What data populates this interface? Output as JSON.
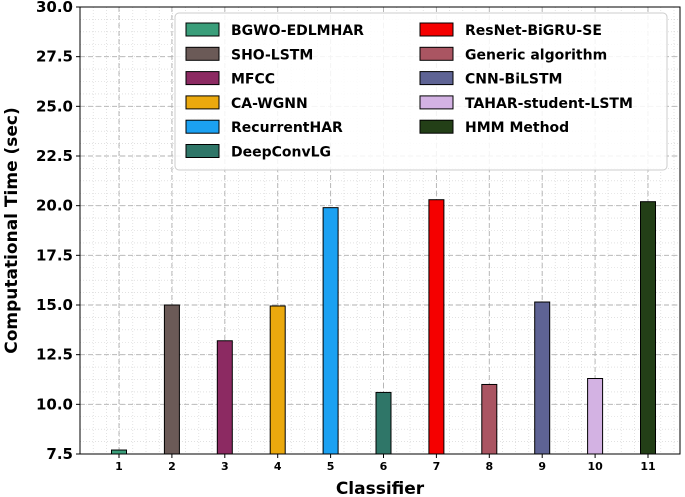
{
  "chart_data": {
    "type": "bar",
    "title": "",
    "xlabel": "Classifier",
    "ylabel": "Computational Time (sec)",
    "ylim": [
      7.5,
      30.0
    ],
    "yticks": [
      "7.5",
      "10.0",
      "12.5",
      "15.0",
      "17.5",
      "20.0",
      "22.5",
      "25.0",
      "27.5",
      "30.0"
    ],
    "grid": true,
    "legend_position": "top-right",
    "categories": [
      "1",
      "2",
      "3",
      "4",
      "5",
      "6",
      "7",
      "8",
      "9",
      "10",
      "11"
    ],
    "series": [
      {
        "name": "BGWO-EDLMHAR",
        "value": 7.7,
        "color": "#3a9e7a"
      },
      {
        "name": "SHO-LSTM",
        "value": 15.0,
        "color": "#6b5a57"
      },
      {
        "name": "MFCC",
        "value": 13.2,
        "color": "#8c2a62"
      },
      {
        "name": "CA-WGNN",
        "value": 14.95,
        "color": "#eba90e"
      },
      {
        "name": "RecurrentHAR",
        "value": 19.9,
        "color": "#1ba1f2"
      },
      {
        "name": "DeepConvLG",
        "value": 10.6,
        "color": "#2f7668"
      },
      {
        "name": "ResNet-BiGRU-SE",
        "value": 20.3,
        "color": "#f50000"
      },
      {
        "name": "Generic algorithm",
        "value": 11.0,
        "color": "#aa5562"
      },
      {
        "name": "CNN-BiLSTM",
        "value": 15.15,
        "color": "#5e6394"
      },
      {
        "name": "TAHAR-student-LSTM",
        "value": 11.3,
        "color": "#d3b2e3"
      },
      {
        "name": "HMM Method",
        "value": 20.2,
        "color": "#233f17"
      }
    ]
  }
}
